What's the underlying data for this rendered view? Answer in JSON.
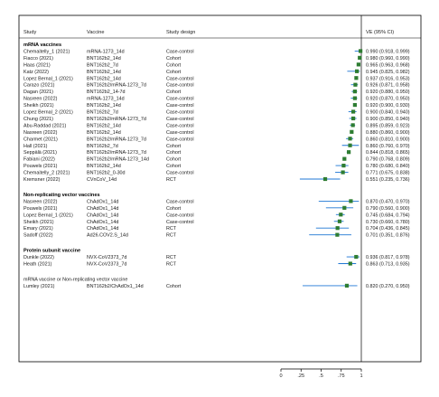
{
  "chart_data": {
    "type": "forest",
    "headers": {
      "study": "Study",
      "vaccine": "Vaccine",
      "design": "Study design",
      "ve": "VE (95% CI)"
    },
    "xlim": [
      0,
      1
    ],
    "ticks": [
      "0",
      ".25",
      ".5",
      ".75",
      "1"
    ],
    "marker_color": "#2e7d32",
    "ci_color": "#1f77d4",
    "groups": [
      {
        "label": "mRNA vaccines",
        "rows": [
          {
            "study": "Chemaitelly_1 (2021)",
            "vaccine": "mRNA-1273_14d",
            "design": "Case-control",
            "ve": "0.990 (0.918, 0.999)",
            "est": 0.99,
            "lo": 0.918,
            "hi": 0.999
          },
          {
            "study": "Fiacco (2021)",
            "vaccine": "BNT162b2_14d",
            "design": "Cohort",
            "ve": "0.980 (0.960, 0.990)",
            "est": 0.98,
            "lo": 0.96,
            "hi": 0.99
          },
          {
            "study": "Haas (2021)",
            "vaccine": "BNT162b2_7d",
            "design": "Cohort",
            "ve": "0.965 (0.963, 0.968)",
            "est": 0.965,
            "lo": 0.963,
            "hi": 0.968
          },
          {
            "study": "Katz (2022)",
            "vaccine": "BNT162b2_14d",
            "design": "Cohort",
            "ve": "0.945 (0.825, 0.982)",
            "est": 0.945,
            "lo": 0.825,
            "hi": 0.982
          },
          {
            "study": "Lopez Bernal_1 (2021)",
            "vaccine": "BNT162b2_14d",
            "design": "Case-control",
            "ve": "0.937 (0.916, 0.953)",
            "est": 0.937,
            "lo": 0.916,
            "hi": 0.953
          },
          {
            "study": "Carazo (2021)",
            "vaccine": "BNT162b2/mRNA-1273_7d",
            "design": "Case-control",
            "ve": "0.926 (0.871, 0.958)",
            "est": 0.926,
            "lo": 0.871,
            "hi": 0.958
          },
          {
            "study": "Dagan (2021)",
            "vaccine": "BNT162b2_14-7d",
            "design": "Cohort",
            "ve": "0.920 (0.880, 0.950)",
            "est": 0.92,
            "lo": 0.88,
            "hi": 0.95
          },
          {
            "study": "Nasreen (2022)",
            "vaccine": "mRNA-1273_14d",
            "design": "Case-control",
            "ve": "0.920 (0.870, 0.950)",
            "est": 0.92,
            "lo": 0.87,
            "hi": 0.95
          },
          {
            "study": "Sheikh (2021)",
            "vaccine": "BNT162b2_14d",
            "design": "Case-control",
            "ve": "0.920 (0.900, 0.930)",
            "est": 0.92,
            "lo": 0.9,
            "hi": 0.93
          },
          {
            "study": "Lopez Bernal_2 (2021)",
            "vaccine": "BNT162b2_7d",
            "design": "Case-control",
            "ve": "0.900 (0.840, 0.940)",
            "est": 0.9,
            "lo": 0.84,
            "hi": 0.94
          },
          {
            "study": "Chung (2021)",
            "vaccine": "BNT162b2/mRNA-1273_7d",
            "design": "Case-control",
            "ve": "0.900 (0.850, 0.940)",
            "est": 0.9,
            "lo": 0.85,
            "hi": 0.94
          },
          {
            "study": "Abu-Raddad (2021)",
            "vaccine": "BNT162b2_14d",
            "design": "Case-control",
            "ve": "0.895 (0.859, 0.923)",
            "est": 0.895,
            "lo": 0.859,
            "hi": 0.923
          },
          {
            "study": "Nasreen (2022)",
            "vaccine": "BNT162b2_14d",
            "design": "Case-control",
            "ve": "0.880 (0.860, 0.900)",
            "est": 0.88,
            "lo": 0.86,
            "hi": 0.9
          },
          {
            "study": "Charmet (2021)",
            "vaccine": "BNT162b2/mRNA-1273_7d",
            "design": "Case-control",
            "ve": "0.860 (0.810, 0.900)",
            "est": 0.86,
            "lo": 0.81,
            "hi": 0.9
          },
          {
            "study": "Hall (2021)",
            "vaccine": "BNT162b2_7d",
            "design": "Cohort",
            "ve": "0.860 (0.760, 0.970)",
            "est": 0.86,
            "lo": 0.76,
            "hi": 0.97
          },
          {
            "study": "Seppälä (2021)",
            "vaccine": "BNT162b2/mRNA-1273_7d",
            "design": "Cohort",
            "ve": "0.844 (0.818, 0.865)",
            "est": 0.844,
            "lo": 0.818,
            "hi": 0.865
          },
          {
            "study": "Fabiani (2022)",
            "vaccine": "BNT162b2/mRNA-1273_14d",
            "design": "Cohort",
            "ve": "0.790 (0.768, 0.809)",
            "est": 0.79,
            "lo": 0.768,
            "hi": 0.809
          },
          {
            "study": "Pouwels (2021)",
            "vaccine": "BNT162b2_14d",
            "design": "Cohort",
            "ve": "0.780 (0.680, 0.840)",
            "est": 0.78,
            "lo": 0.68,
            "hi": 0.84
          },
          {
            "study": "Chemaitelly_2 (2021)",
            "vaccine": "BNT162b2_0-30d",
            "design": "Case-control",
            "ve": "0.771 (0.675, 0.838)",
            "est": 0.771,
            "lo": 0.675,
            "hi": 0.838
          },
          {
            "study": "Kremsner (2022)",
            "vaccine": "CVnCoV_14d",
            "design": "RCT",
            "ve": "0.551 (0.235, 0.736)",
            "est": 0.551,
            "lo": 0.235,
            "hi": 0.736
          }
        ]
      },
      {
        "label": "Non-replicating vector vaccines",
        "rows": [
          {
            "study": "Nasreen (2022)",
            "vaccine": "ChAdOx1_14d",
            "design": "Case-control",
            "ve": "0.870 (0.470, 0.970)",
            "est": 0.87,
            "lo": 0.47,
            "hi": 0.97
          },
          {
            "study": "Pouwels (2021)",
            "vaccine": "ChAdOx1_14d",
            "design": "Cohort",
            "ve": "0.790 (0.560, 0.900)",
            "est": 0.79,
            "lo": 0.56,
            "hi": 0.9
          },
          {
            "study": "Lopez Bernal_1 (2021)",
            "vaccine": "ChAdOx1_14d",
            "design": "Case-control",
            "ve": "0.745 (0.684, 0.794)",
            "est": 0.745,
            "lo": 0.684,
            "hi": 0.794
          },
          {
            "study": "Sheikh (2021)",
            "vaccine": "ChAdOx1_14d",
            "design": "Case-control",
            "ve": "0.730 (0.660, 0.780)",
            "est": 0.73,
            "lo": 0.66,
            "hi": 0.78
          },
          {
            "study": "Emary (2021)",
            "vaccine": "ChAdOx1_14d",
            "design": "RCT",
            "ve": "0.704 (0.436, 0.845)",
            "est": 0.704,
            "lo": 0.436,
            "hi": 0.845
          },
          {
            "study": "Sadoff (2022)",
            "vaccine": "Ad26.COV2.S_14d",
            "design": "RCT",
            "ve": "0.701 (0.351, 0.876)",
            "est": 0.701,
            "lo": 0.351,
            "hi": 0.876
          }
        ]
      },
      {
        "label": "Protein subunit vaccine",
        "rows": [
          {
            "study": "Dunkle (2022)",
            "vaccine": "NVX-CoV2373_7d",
            "design": "RCT",
            "ve": "0.936 (0.817, 0.978)",
            "est": 0.936,
            "lo": 0.817,
            "hi": 0.978
          },
          {
            "study": "Heath (2021)",
            "vaccine": "NVX-CoV2373_7d",
            "design": "RCT",
            "ve": "0.863 (0.713, 0.935)",
            "est": 0.863,
            "lo": 0.713,
            "hi": 0.935
          }
        ]
      },
      {
        "label": "mRNA vaccine or Non-replicating vector vaccine",
        "plain": true,
        "rows": [
          {
            "study": "Lumley (2021)",
            "vaccine": "BNT162b2/ChAdOx1_14d",
            "design": "Cohort",
            "ve": "0.820 (0.270, 0.950)",
            "est": 0.82,
            "lo": 0.27,
            "hi": 0.95
          }
        ]
      }
    ]
  }
}
